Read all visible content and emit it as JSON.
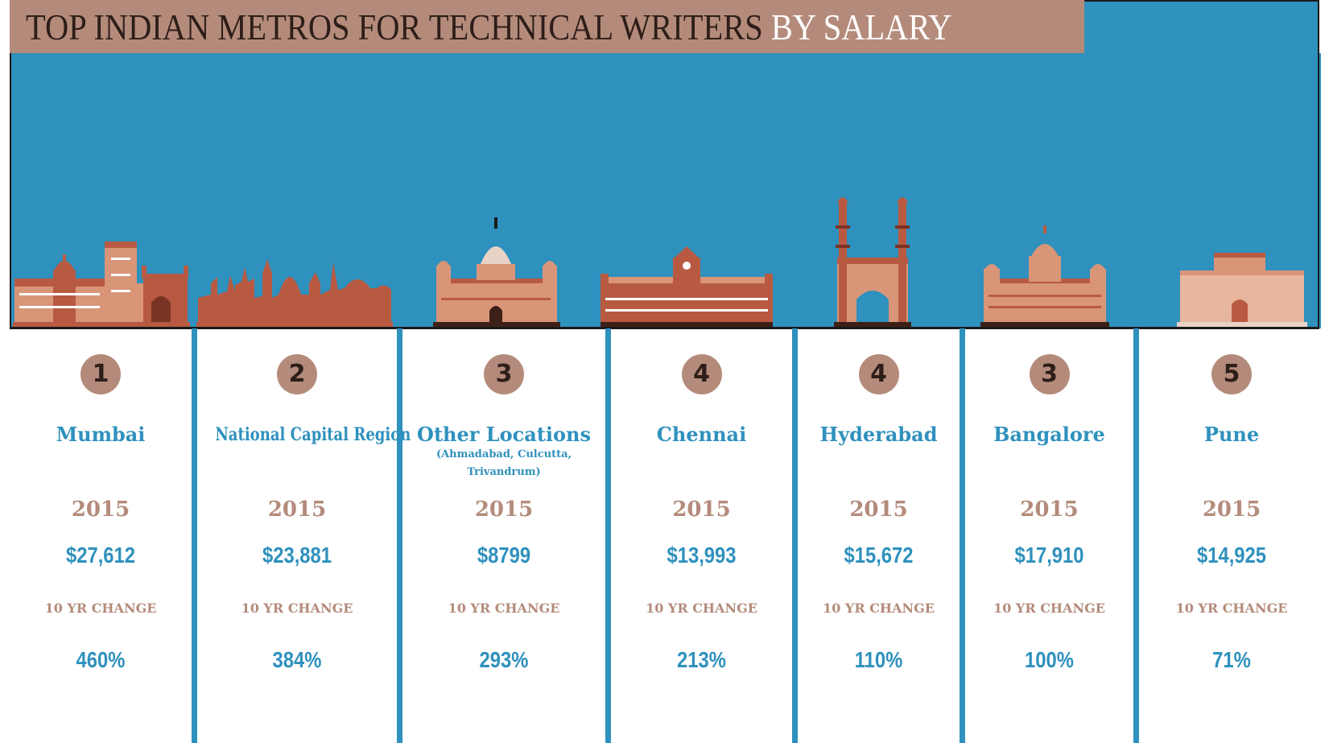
{
  "title": {
    "main": "TOP INDIAN METROS FOR TECHNICAL WRITERS",
    "accent": "BY SALARY"
  },
  "colors": {
    "sky": "#2f91bd",
    "title_bar": "#b48b7b",
    "building_dark": "#b85a42",
    "building_light": "#d99578"
  },
  "icons": [
    "mumbai-gateway-icon",
    "delhi-skyline-icon",
    "victoria-memorial-icon",
    "chennai-central-icon",
    "charminar-icon",
    "vidhana-soudha-icon",
    "shaniwar-wada-icon"
  ],
  "cities": [
    {
      "rank": "1",
      "name": "Mumbai",
      "year": "2015",
      "salary": "$27,612",
      "change_label": "10 YR CHANGE",
      "change": "460%"
    },
    {
      "rank": "2",
      "name": "National Capital Region",
      "year": "2015",
      "salary": "$23,881",
      "change_label": "10 YR CHANGE",
      "change": "384%"
    },
    {
      "rank": "3",
      "name": "Other Locations",
      "sub_line1": "(Ahmadabad, Culcutta,",
      "sub_line2": "Trivandrum)",
      "year": "2015",
      "salary": "$8799",
      "change_label": "10 YR CHANGE",
      "change": "293%"
    },
    {
      "rank": "4",
      "name": "Chennai",
      "year": "2015",
      "salary": "$13,993",
      "change_label": "10 YR CHANGE",
      "change": "213%"
    },
    {
      "rank": "4",
      "name": "Hyderabad",
      "year": "2015",
      "salary": "$15,672",
      "change_label": "10 YR CHANGE",
      "change": "110%"
    },
    {
      "rank": "3",
      "name": "Bangalore",
      "year": "2015",
      "salary": "$17,910",
      "change_label": "10 YR CHANGE",
      "change": "100%"
    },
    {
      "rank": "5",
      "name": "Pune",
      "year": "2015",
      "salary": "$14,925",
      "change_label": "10 YR CHANGE",
      "change": "71%"
    }
  ]
}
